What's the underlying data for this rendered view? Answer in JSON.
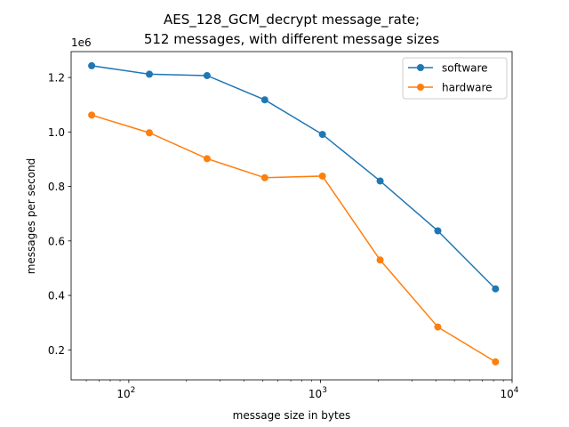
{
  "chart_data": {
    "type": "line",
    "title_lines": [
      "AES_128_GCM_decrypt message_rate;",
      "512 messages, with different message sizes"
    ],
    "xlabel": "message size in bytes",
    "ylabel": "messages per second",
    "x_scale": "log",
    "xlim": [
      50,
      10000
    ],
    "ylim": [
      90000,
      1295000
    ],
    "y_offset_label": "1e6",
    "x_ticks": [
      100,
      1000,
      10000
    ],
    "x_tick_labels": [
      {
        "base": "10",
        "exp": "2"
      },
      {
        "base": "10",
        "exp": "3"
      },
      {
        "base": "10",
        "exp": "4"
      }
    ],
    "y_ticks": [
      200000,
      400000,
      600000,
      800000,
      1000000,
      1200000
    ],
    "y_tick_labels": [
      "0.2",
      "0.4",
      "0.6",
      "0.8",
      "1.0",
      "1.2"
    ],
    "legend_position": "top-right",
    "grid": false,
    "x": [
      64,
      128,
      256,
      512,
      1024,
      2048,
      4096,
      8192
    ],
    "series": [
      {
        "name": "software",
        "color": "#1f77b4",
        "values": [
          1243000,
          1212000,
          1207000,
          1118000,
          991000,
          820000,
          637000,
          424000
        ]
      },
      {
        "name": "hardware",
        "color": "#ff7f0e",
        "values": [
          1062000,
          997000,
          902000,
          832000,
          838000,
          530000,
          284000,
          156000
        ]
      }
    ]
  }
}
